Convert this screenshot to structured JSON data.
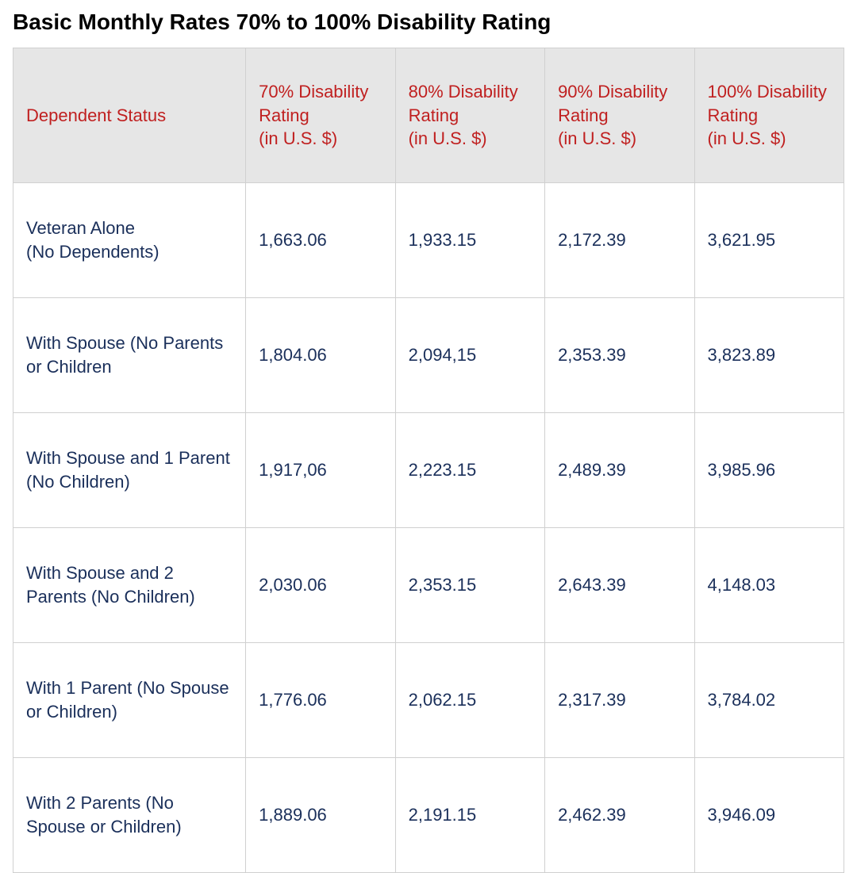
{
  "title": "Basic Monthly Rates 70% to 100% Disability Rating",
  "table": {
    "type": "table",
    "header_bg_color": "#e6e6e6",
    "header_text_color": "#c02020",
    "cell_text_color": "#1a2f5a",
    "border_color": "#d0d0d0",
    "background_color": "#ffffff",
    "title_fontsize": 28,
    "cell_fontsize": 22,
    "columns": [
      {
        "key": "status",
        "main": "Dependent Status",
        "sub": "",
        "width": "28%",
        "align": "left"
      },
      {
        "key": "r70",
        "main": "70% Disability Rating",
        "sub": "(in U.S. $)",
        "width": "18%",
        "align": "left"
      },
      {
        "key": "r80",
        "main": "80% Disability Rating",
        "sub": "(in U.S. $)",
        "width": "18%",
        "align": "left"
      },
      {
        "key": "r90",
        "main": "90% Disability Rating",
        "sub": "(in U.S. $)",
        "width": "18%",
        "align": "left"
      },
      {
        "key": "r100",
        "main": "100% Disability Rating",
        "sub": "(in U.S. $)",
        "width": "18%",
        "align": "left"
      }
    ],
    "rows": [
      {
        "status": "Veteran Alone\n(No Dependents)",
        "r70": "1,663.06",
        "r80": "1,933.15",
        "r90": "2,172.39",
        "r100": "3,621.95"
      },
      {
        "status": "With Spouse (No Parents or Children",
        "r70": "1,804.06",
        "r80": "2,094,15",
        "r90": "2,353.39",
        "r100": "3,823.89"
      },
      {
        "status": "With Spouse and 1 Parent (No Children)",
        "r70": "1,917,06",
        "r80": "2,223.15",
        "r90": "2,489.39",
        "r100": "3,985.96"
      },
      {
        "status": "With Spouse and 2 Parents (No Children)",
        "r70": "2,030.06",
        "r80": "2,353.15",
        "r90": "2,643.39",
        "r100": "4,148.03"
      },
      {
        "status": "With 1 Parent (No Spouse or Children)",
        "r70": "1,776.06",
        "r80": "2,062.15",
        "r90": "2,317.39",
        "r100": "3,784.02"
      },
      {
        "status": "With 2 Parents (No Spouse or Children)",
        "r70": "1,889.06",
        "r80": "2,191.15",
        "r90": "2,462.39",
        "r100": "3,946.09"
      }
    ]
  }
}
